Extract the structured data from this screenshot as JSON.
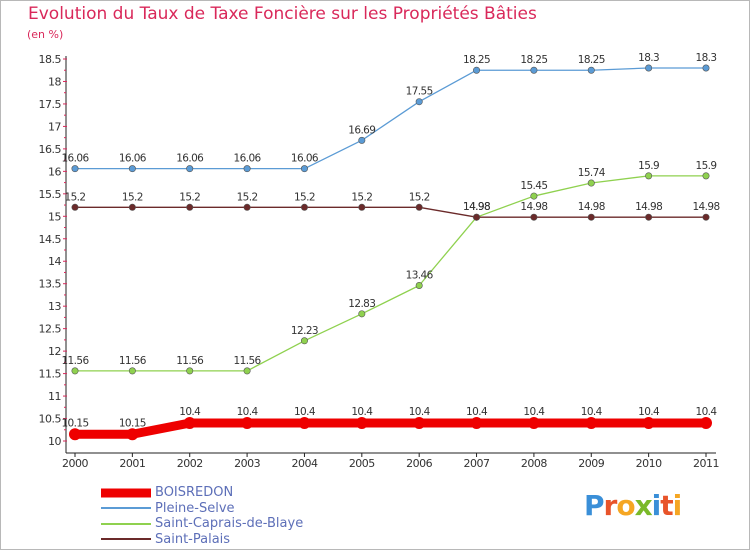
{
  "title": "Evolution du Taux de Taxe Foncière sur les Propriétés Bâties",
  "unit_label": "(en %)",
  "logo_text": "Proxiti",
  "chart_data": {
    "type": "line",
    "title": "Evolution du Taux de Taxe Foncière sur les Propriétés Bâties",
    "ylabel": "(en %)",
    "xlabel": "",
    "x": [
      2000,
      2001,
      2002,
      2003,
      2004,
      2005,
      2006,
      2007,
      2008,
      2009,
      2010,
      2011
    ],
    "ylim": [
      10,
      18.5
    ],
    "yticks": [
      10,
      10.5,
      11,
      11.5,
      12,
      12.5,
      13,
      13.5,
      14,
      14.5,
      15,
      15.5,
      16,
      16.5,
      17,
      17.5,
      18,
      18.5
    ],
    "grid": false,
    "legend_position": "bottom-left",
    "series": [
      {
        "name": "BOISREDON",
        "color": "#ee0000",
        "values": [
          10.15,
          10.15,
          10.4,
          10.4,
          10.4,
          10.4,
          10.4,
          10.4,
          10.4,
          10.4,
          10.4,
          10.4
        ],
        "labels": [
          "10.15",
          "10.15",
          "10.4",
          "10.4",
          "10.4",
          "10.4",
          "10.4",
          "10.4",
          "10.4",
          "10.4",
          "10.4",
          "10.4"
        ]
      },
      {
        "name": "Pleine-Selve",
        "color": "#5b9bd5",
        "values": [
          16.06,
          16.06,
          16.06,
          16.06,
          16.06,
          16.69,
          17.55,
          18.25,
          18.25,
          18.25,
          18.3,
          18.3
        ],
        "labels": [
          "16.06",
          "16.06",
          "16.06",
          "16.06",
          "16.06",
          "16.69",
          "17.55",
          "18.25",
          "18.25",
          "18.25",
          "18.3",
          "18.3"
        ]
      },
      {
        "name": "Saint-Caprais-de-Blaye",
        "color": "#8fd14f",
        "values": [
          11.56,
          11.56,
          11.56,
          11.56,
          12.23,
          12.83,
          13.46,
          14.98,
          15.45,
          15.74,
          15.9,
          15.9
        ],
        "labels": [
          "11.56",
          "11.56",
          "11.56",
          "11.56",
          "12.23",
          "12.83",
          "13.46",
          "14.98",
          "15.45",
          "15.74",
          "15.9",
          "15.9"
        ]
      },
      {
        "name": "Saint-Palais",
        "color": "#6b2a2a",
        "values": [
          15.2,
          15.2,
          15.2,
          15.2,
          15.2,
          15.2,
          15.2,
          14.98,
          14.98,
          14.98,
          14.98,
          14.98
        ],
        "labels": [
          "15.2",
          "15.2",
          "15.2",
          "15.2",
          "15.2",
          "15.2",
          "15.2",
          "14.98",
          "14.98",
          "14.98",
          "14.98",
          "14.98"
        ]
      }
    ]
  }
}
